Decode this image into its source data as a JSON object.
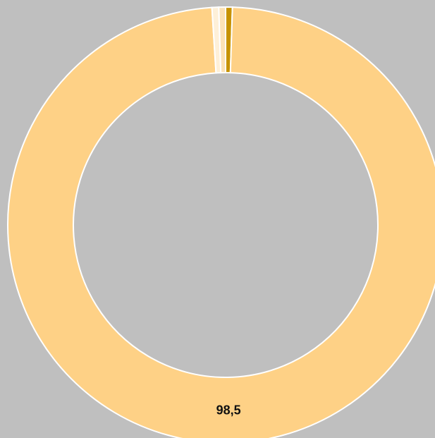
{
  "background_color": "#bfbfbf",
  "chart_data": {
    "type": "pie",
    "variant": "donut",
    "title": "",
    "segments": [
      {
        "value": 0.5,
        "color": "#c69200"
      },
      {
        "value": 98.5,
        "color": "#fed186",
        "label": "98,5"
      },
      {
        "value": 0.5,
        "color": "#fef0d8"
      },
      {
        "value": 0.5,
        "color": "#fce2b6"
      }
    ],
    "start_angle_deg": 0,
    "direction": "clockwise",
    "legend": "none",
    "segment_border_color": "#ffffff"
  }
}
